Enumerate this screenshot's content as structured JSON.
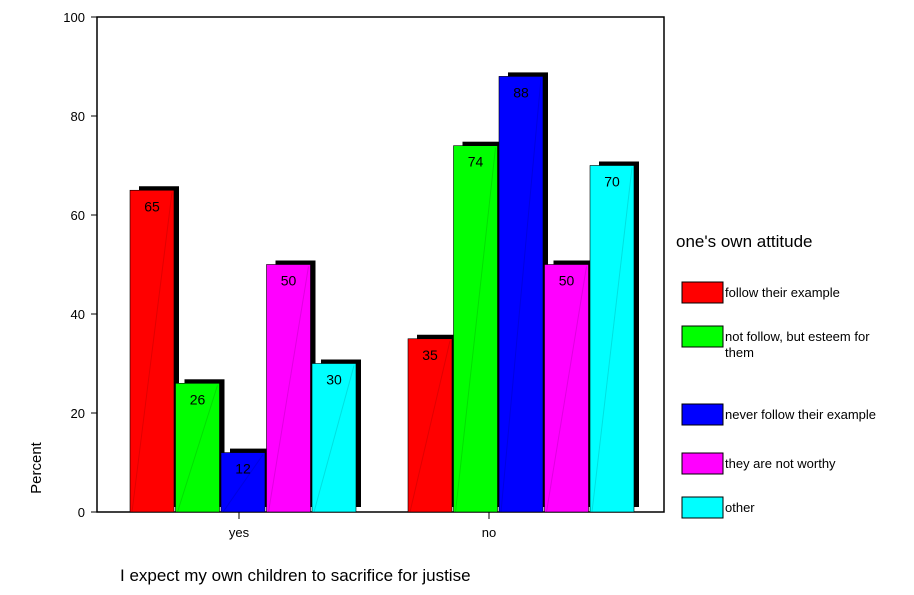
{
  "chart_data": {
    "type": "bar",
    "title": "",
    "xlabel": "I expect my own children to sacrifice for justise",
    "ylabel": "Percent",
    "ylim": [
      0,
      100
    ],
    "yticks": [
      "0",
      "20",
      "40",
      "60",
      "80",
      "100"
    ],
    "categories": [
      "yes",
      "no"
    ],
    "legend_title": "one's own attitude",
    "legend_position": "right",
    "grid": false,
    "series": [
      {
        "name": "follow their example",
        "color": "#ff0000",
        "values": [
          65,
          35
        ]
      },
      {
        "name": "not follow, but esteem for them",
        "color": "#00ff00",
        "values": [
          26,
          74
        ]
      },
      {
        "name": "never follow their example",
        "color": "#0000ff",
        "values": [
          12,
          88
        ]
      },
      {
        "name": "they are not worthy",
        "color": "#ff00ff",
        "values": [
          50,
          50
        ]
      },
      {
        "name": "other",
        "color": "#00ffff",
        "values": [
          30,
          70
        ]
      }
    ],
    "data_labels": [
      [
        "65",
        "35"
      ],
      [
        "26",
        "74"
      ],
      [
        "12",
        "88"
      ],
      [
        "50",
        "50"
      ],
      [
        "30",
        "70"
      ]
    ]
  }
}
